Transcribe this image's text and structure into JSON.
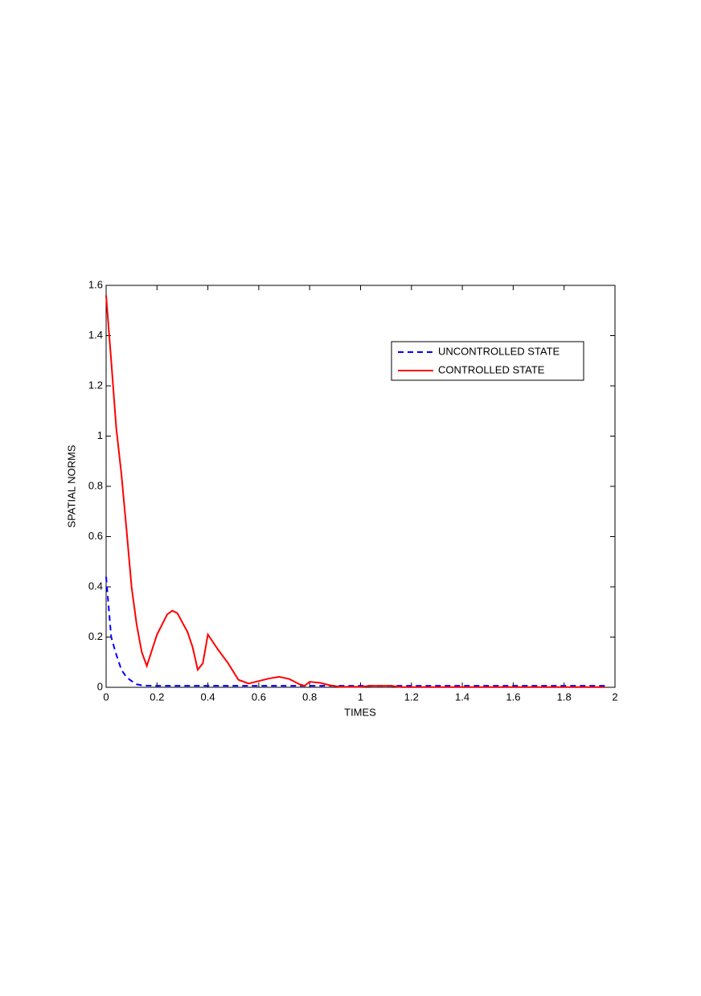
{
  "chart_data": {
    "type": "line",
    "xlabel": "TIMES",
    "ylabel": "SPATIAL NORMS",
    "x": [
      0,
      0.02,
      0.04,
      0.06,
      0.08,
      0.1,
      0.12,
      0.14,
      0.16,
      0.2,
      0.24,
      0.26,
      0.28,
      0.32,
      0.34,
      0.36,
      0.38,
      0.4,
      0.44,
      0.48,
      0.52,
      0.56,
      0.6,
      0.64,
      0.68,
      0.72,
      0.76,
      0.78,
      0.8,
      0.84,
      0.88,
      0.92,
      1,
      1.04,
      1.12,
      1.16,
      1.4,
      1.7,
      1.96
    ],
    "series": [
      {
        "name": "UNCONTROLLED STATE",
        "color": "#0000ff",
        "dash": true,
        "values": [
          0.44,
          0.2,
          0.13,
          0.07,
          0.04,
          0.025,
          0.012,
          0.008,
          0.007,
          0.006,
          0.006,
          0.006,
          0.006,
          0.006,
          0.006,
          0.006,
          0.006,
          0.006,
          0.006,
          0.006,
          0.006,
          0.006,
          0.006,
          0.006,
          0.006,
          0.006,
          0.006,
          0.006,
          0.006,
          0.006,
          0.006,
          0.006,
          0.006,
          0.006,
          0.006,
          0.006,
          0.006,
          0.006,
          0.006
        ]
      },
      {
        "name": "CONTROLLED STATE",
        "color": "#ff0000",
        "dash": false,
        "values": [
          1.56,
          1.3,
          1.03,
          0.85,
          0.63,
          0.4,
          0.25,
          0.14,
          0.085,
          0.21,
          0.29,
          0.305,
          0.295,
          0.22,
          0.16,
          0.07,
          0.095,
          0.21,
          0.15,
          0.095,
          0.03,
          0.015,
          0.025,
          0.035,
          0.042,
          0.033,
          0.012,
          0.006,
          0.022,
          0.018,
          0.008,
          0.002,
          0.002,
          0.006,
          0.006,
          0.001,
          0.001,
          0.001,
          0.001
        ]
      }
    ],
    "xlim": [
      0,
      2
    ],
    "xticks": [
      0,
      0.2,
      0.4,
      0.6,
      0.8,
      1,
      1.2,
      1.4,
      1.6,
      1.8,
      2
    ],
    "ylim": [
      0,
      1.6
    ],
    "yticks": [
      0,
      0.2,
      0.4,
      0.6,
      0.8,
      1,
      1.2,
      1.4,
      1.6
    ],
    "legend": "upper right"
  }
}
